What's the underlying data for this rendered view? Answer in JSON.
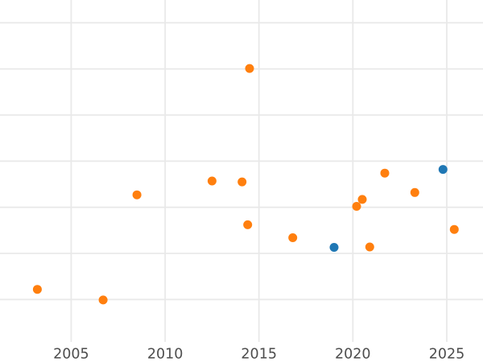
{
  "chart_data": {
    "type": "scatter",
    "title": "",
    "xlabel": "",
    "ylabel": "",
    "grid": true,
    "legend": "none",
    "y_axis_labels_visible": false,
    "note": "y-axis labels are cropped out of view; y values are in gridline units where the bottom visible gridline = 0 and each gridline step = 1",
    "x_tick_labels": [
      "2005",
      "2010",
      "2015",
      "2020",
      "2025"
    ],
    "x_tick_years": [
      2005,
      2010,
      2015,
      2020,
      2025
    ],
    "xlim": [
      2001.21,
      2026.93
    ],
    "ylim": [
      -1.355,
      6.494
    ],
    "y_gridline_units": [
      0,
      1,
      2,
      3,
      4,
      5,
      6
    ],
    "marker_radius_px": 5.5,
    "colors": {
      "background": "#ffffff",
      "gridline": "#e9e9e9",
      "tick_label": "#4d4d4d",
      "orange": "#ff7f0e",
      "blue": "#1f77b4"
    },
    "series": [
      {
        "name": "orange-series",
        "color_key": "orange",
        "points": [
          [
            2003.2,
            0.22
          ],
          [
            2006.7,
            -0.01
          ],
          [
            2008.5,
            2.27
          ],
          [
            2012.5,
            2.57
          ],
          [
            2014.1,
            2.55
          ],
          [
            2014.4,
            1.62
          ],
          [
            2014.5,
            5.01
          ],
          [
            2016.8,
            1.34
          ],
          [
            2020.2,
            2.02
          ],
          [
            2020.5,
            2.17
          ],
          [
            2020.9,
            1.14
          ],
          [
            2021.7,
            2.74
          ],
          [
            2023.3,
            2.32
          ],
          [
            2025.4,
            1.52
          ]
        ]
      },
      {
        "name": "blue-series",
        "color_key": "blue",
        "points": [
          [
            2019.0,
            1.13
          ],
          [
            2024.8,
            2.82
          ]
        ]
      }
    ]
  }
}
